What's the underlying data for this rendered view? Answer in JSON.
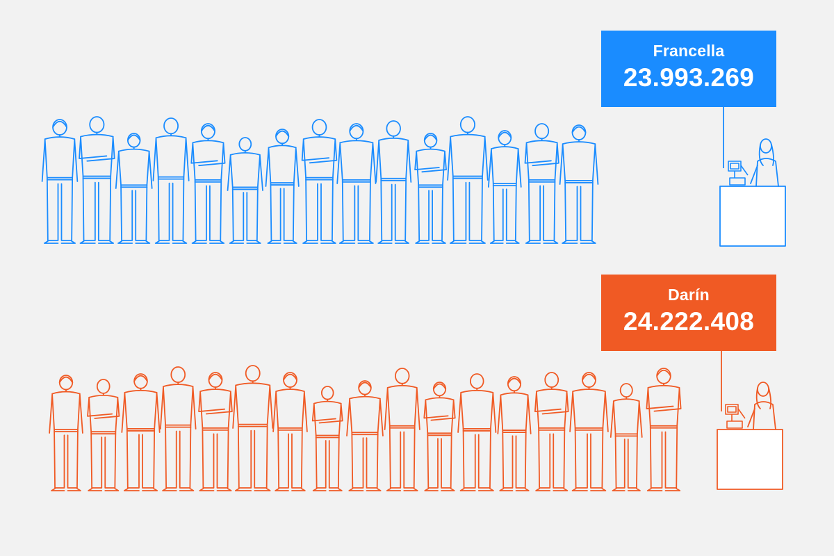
{
  "chart_data": {
    "type": "bar",
    "categories": [
      "Francella",
      "Darín"
    ],
    "series": [
      {
        "values": [
          23993269,
          24222408
        ]
      }
    ],
    "rows": [
      {
        "name": "Francella",
        "value_text": "23.993.269",
        "value": 23993269,
        "people_in_queue": 15,
        "color": "#1a8cff"
      },
      {
        "name": "Darín",
        "value_text": "24.222.408",
        "value": 24222408,
        "people_in_queue": 17,
        "color": "#f05a24"
      }
    ]
  },
  "colors": {
    "background": "#f2f2f2",
    "francella": "#1a8cff",
    "darin": "#f05a24"
  },
  "icons": [
    "person-silhouette-icon",
    "cashier-icon",
    "cash-register-icon",
    "counter-icon"
  ]
}
